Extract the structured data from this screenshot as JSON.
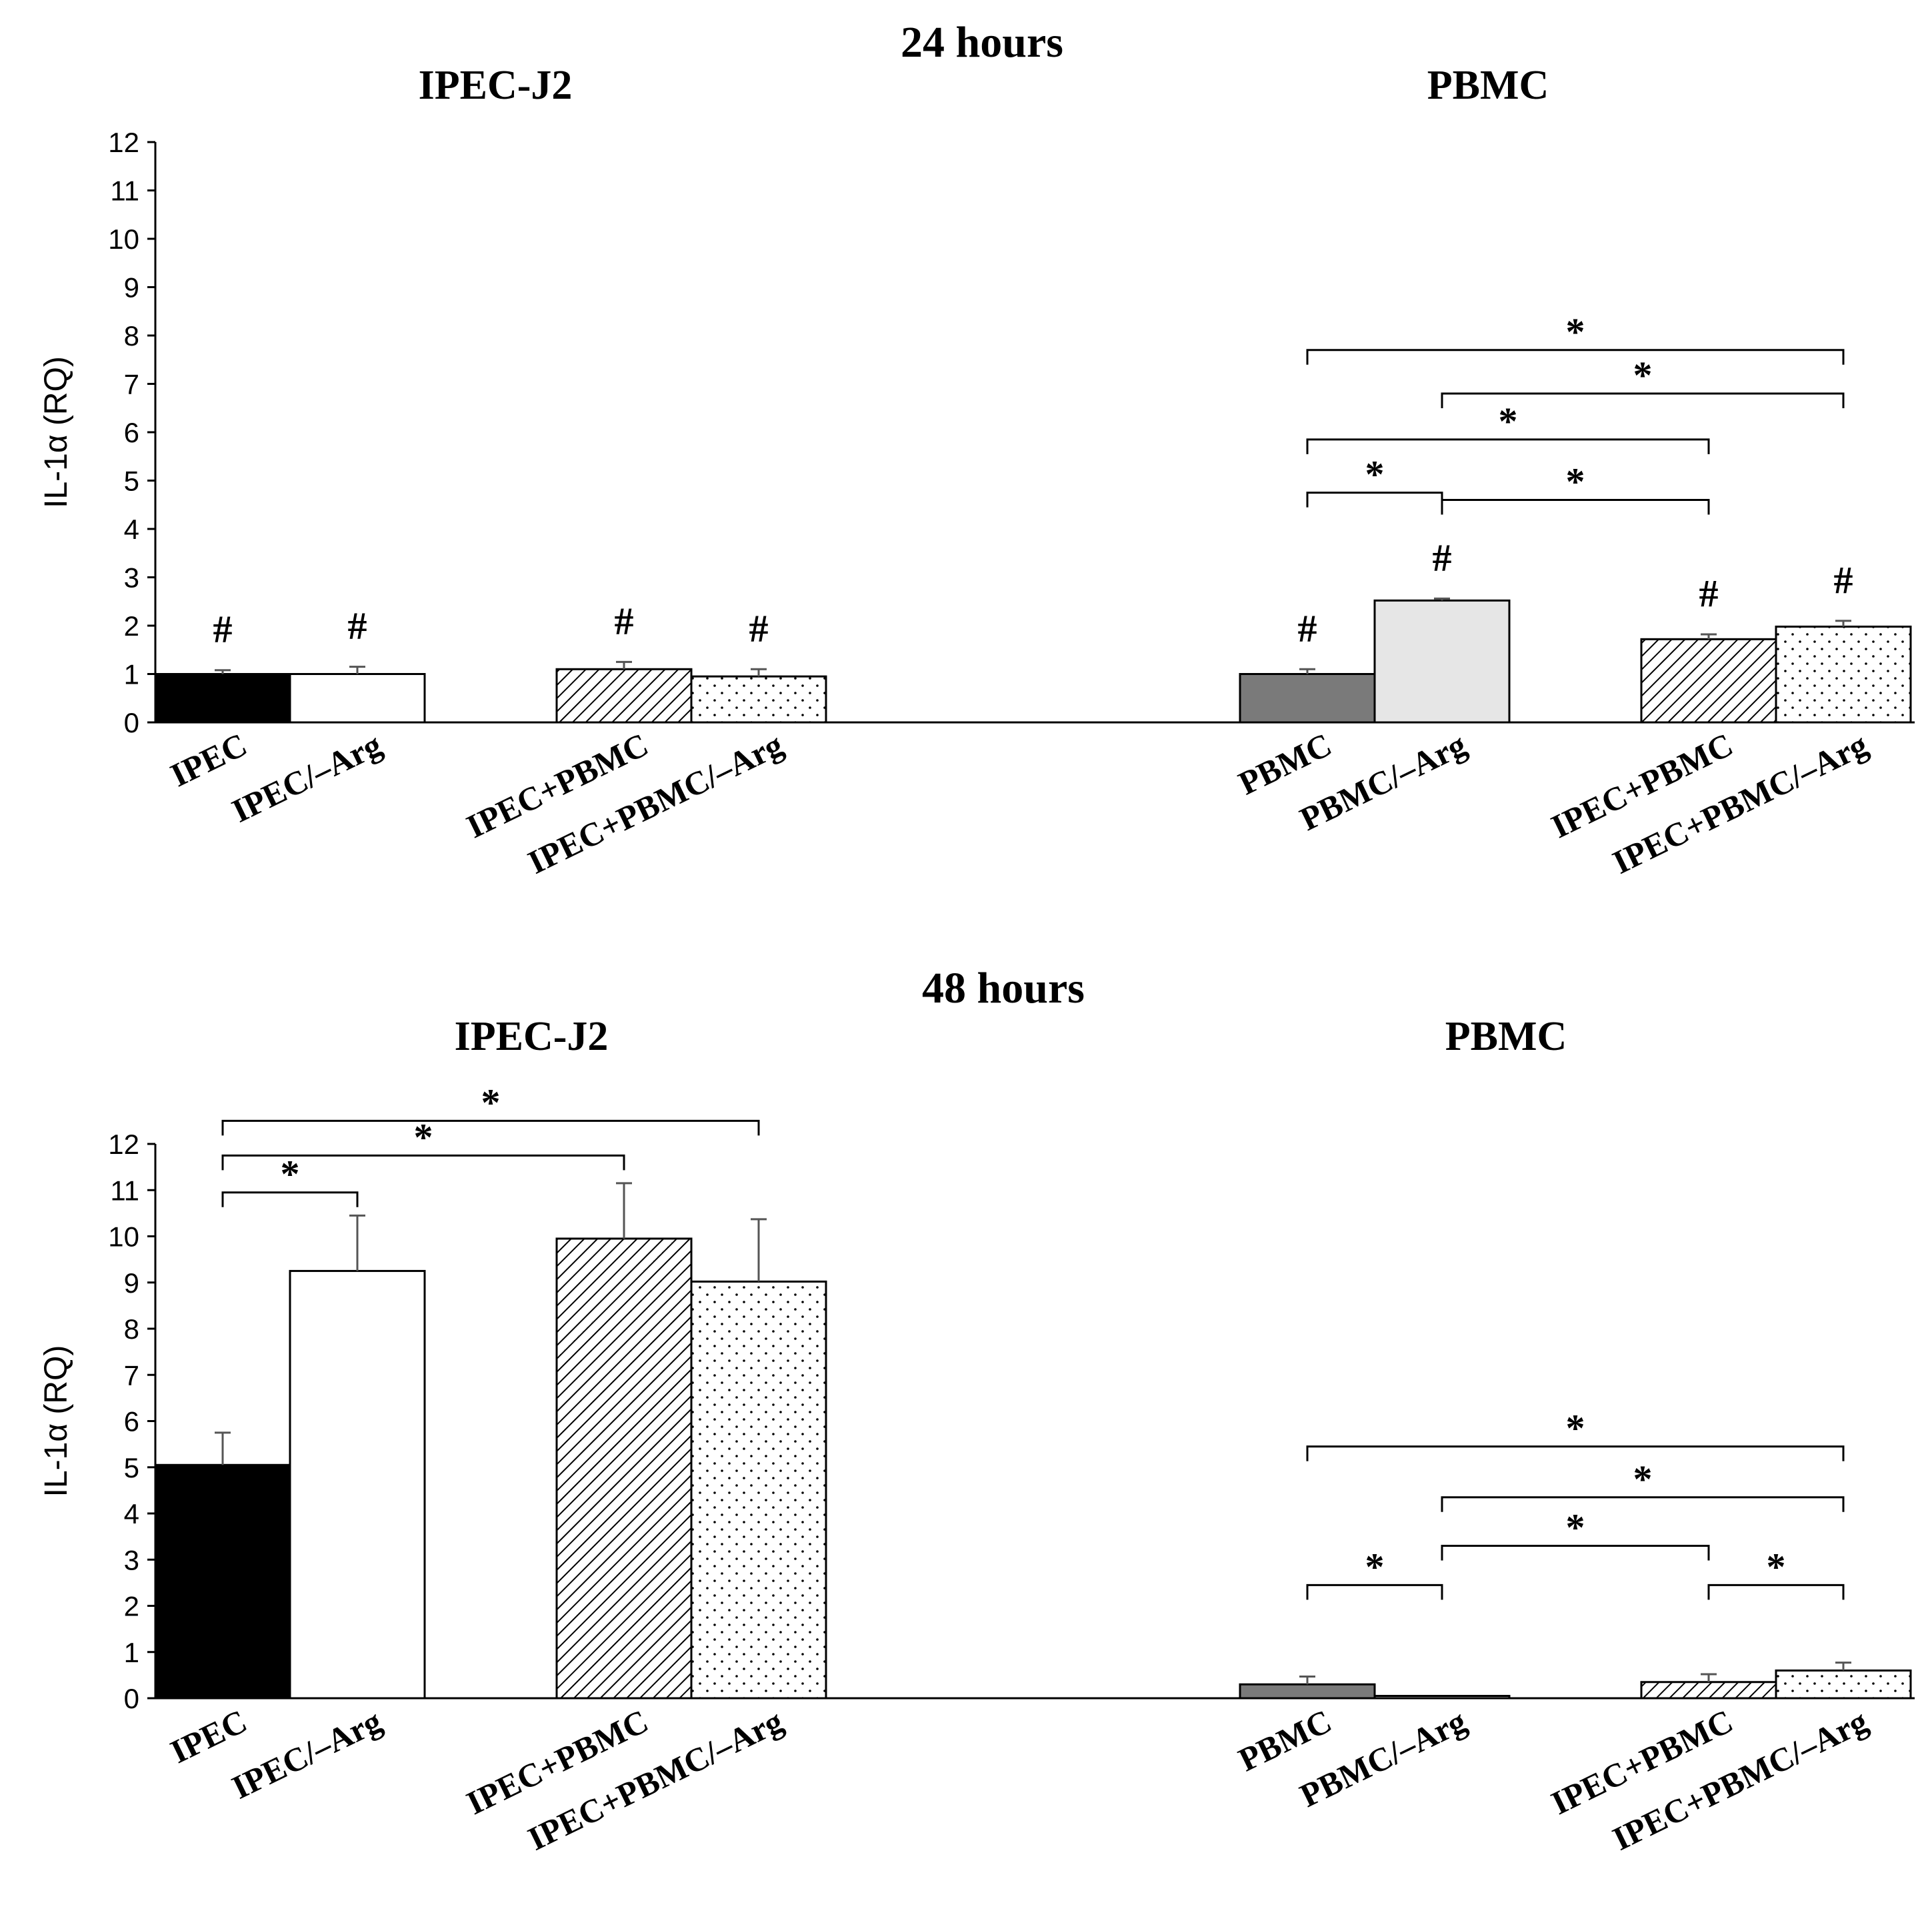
{
  "chart_data": [
    {
      "type": "bar",
      "title": "24 hours",
      "ylabel": "IL-1α (RQ)",
      "ylim": [
        0,
        12
      ],
      "yticks": [
        0,
        1,
        2,
        3,
        4,
        5,
        6,
        7,
        8,
        9,
        10,
        11,
        12
      ],
      "groups": [
        {
          "title": "IPEC-J2",
          "bars": [
            {
              "label": "IPEC",
              "value": 1.0,
              "error": 0.08,
              "fill": "black",
              "marker": "#"
            },
            {
              "label": "IPEC/–Arg",
              "value": 1.0,
              "error": 0.15,
              "fill": "white",
              "marker": "#"
            },
            {
              "label": "IPEC+PBMC",
              "value": 1.1,
              "error": 0.15,
              "fill": "hatch",
              "marker": "#"
            },
            {
              "label": "IPEC+PBMC/–Arg",
              "value": 0.95,
              "error": 0.15,
              "fill": "dots",
              "marker": "#"
            }
          ],
          "brackets": []
        },
        {
          "title": "PBMC",
          "bars": [
            {
              "label": "PBMC",
              "value": 1.0,
              "error": 0.1,
              "fill": "dark-gray",
              "marker": "#"
            },
            {
              "label": "PBMC/–Arg",
              "value": 2.52,
              "error": 0.04,
              "fill": "light-gray",
              "marker": "#"
            },
            {
              "label": "IPEC+PBMC",
              "value": 1.72,
              "error": 0.1,
              "fill": "hatch",
              "marker": "#"
            },
            {
              "label": "IPEC+PBMC/–Arg",
              "value": 1.98,
              "error": 0.12,
              "fill": "dots",
              "marker": "#"
            }
          ],
          "brackets": [
            {
              "from": 0,
              "to": 3,
              "y": 7.7,
              "label": "*"
            },
            {
              "from": 1,
              "to": 3,
              "y": 6.8,
              "label": "*"
            },
            {
              "from": 0,
              "to": 2,
              "y": 5.85,
              "label": "*"
            },
            {
              "from": 0,
              "to": 1,
              "y": 4.75,
              "label": "*"
            },
            {
              "from": 1,
              "to": 2,
              "y": 4.6,
              "label": "*"
            }
          ]
        }
      ]
    },
    {
      "type": "bar",
      "title": "48 hours",
      "ylabel": "IL-1α (RQ)",
      "ylim": [
        0,
        12
      ],
      "yticks": [
        0,
        1,
        2,
        3,
        4,
        5,
        6,
        7,
        8,
        9,
        10,
        11,
        12
      ],
      "groups": [
        {
          "title": "IPEC-J2",
          "bars": [
            {
              "label": "IPEC",
              "value": 5.05,
              "error": 0.7,
              "fill": "black",
              "marker": ""
            },
            {
              "label": "IPEC/–Arg",
              "value": 9.25,
              "error": 1.2,
              "fill": "white",
              "marker": ""
            },
            {
              "label": "IPEC+PBMC",
              "value": 9.95,
              "error": 1.2,
              "fill": "hatch",
              "marker": ""
            },
            {
              "label": "IPEC+PBMC/–Arg",
              "value": 9.02,
              "error": 1.35,
              "fill": "dots",
              "marker": ""
            }
          ],
          "brackets": [
            {
              "from": 0,
              "to": 3,
              "y": 12.5,
              "label": "*"
            },
            {
              "from": 0,
              "to": 2,
              "y": 11.75,
              "label": "*"
            },
            {
              "from": 0,
              "to": 1,
              "y": 10.95,
              "label": "*"
            }
          ]
        },
        {
          "title": "PBMC",
          "bars": [
            {
              "label": "PBMC",
              "value": 0.3,
              "error": 0.17,
              "fill": "dark-gray",
              "marker": ""
            },
            {
              "label": "PBMC/–Arg",
              "value": 0.05,
              "error": 0.0,
              "fill": "light-gray",
              "marker": ""
            },
            {
              "label": "IPEC+PBMC",
              "value": 0.35,
              "error": 0.17,
              "fill": "hatch",
              "marker": ""
            },
            {
              "label": "IPEC+PBMC/–Arg",
              "value": 0.6,
              "error": 0.17,
              "fill": "dots",
              "marker": ""
            }
          ],
          "brackets": [
            {
              "from": 0,
              "to": 3,
              "y": 5.45,
              "label": "*"
            },
            {
              "from": 1,
              "to": 3,
              "y": 4.35,
              "label": "*"
            },
            {
              "from": 1,
              "to": 2,
              "y": 3.3,
              "label": "*"
            },
            {
              "from": 0,
              "to": 1,
              "y": 2.45,
              "label": "*"
            },
            {
              "from": 2,
              "to": 3,
              "y": 2.45,
              "label": "*"
            }
          ]
        }
      ]
    }
  ]
}
